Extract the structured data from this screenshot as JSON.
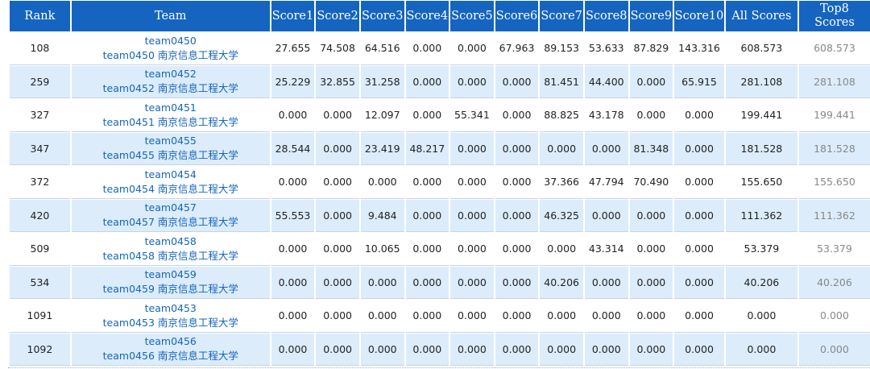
{
  "table": {
    "headers": [
      "Rank",
      "Team",
      "Score1",
      "Score2",
      "Score3",
      "Score4",
      "Score5",
      "Score6",
      "Score7",
      "Score8",
      "Score9",
      "Score10",
      "All Scores",
      "Top8\nScores"
    ],
    "rows": [
      {
        "rank": "108",
        "team_id": "team0450",
        "team_name": "team0450 南京信息工程大学",
        "scores": [
          "27.655",
          "74.508",
          "64.516",
          "0.000",
          "0.000",
          "67.963",
          "89.153",
          "53.633",
          "87.829",
          "143.316"
        ],
        "all": "608.573",
        "top8": "608.573"
      },
      {
        "rank": "259",
        "team_id": "team0452",
        "team_name": "team0452 南京信息工程大学",
        "scores": [
          "25.229",
          "32.855",
          "31.258",
          "0.000",
          "0.000",
          "0.000",
          "81.451",
          "44.400",
          "0.000",
          "65.915"
        ],
        "all": "281.108",
        "top8": "281.108"
      },
      {
        "rank": "327",
        "team_id": "team0451",
        "team_name": "team0451 南京信息工程大学",
        "scores": [
          "0.000",
          "0.000",
          "12.097",
          "0.000",
          "55.341",
          "0.000",
          "88.825",
          "43.178",
          "0.000",
          "0.000"
        ],
        "all": "199.441",
        "top8": "199.441"
      },
      {
        "rank": "347",
        "team_id": "team0455",
        "team_name": "team0455 南京信息工程大学",
        "scores": [
          "28.544",
          "0.000",
          "23.419",
          "48.217",
          "0.000",
          "0.000",
          "0.000",
          "0.000",
          "81.348",
          "0.000"
        ],
        "all": "181.528",
        "top8": "181.528"
      },
      {
        "rank": "372",
        "team_id": "team0454",
        "team_name": "team0454 南京信息工程大学",
        "scores": [
          "0.000",
          "0.000",
          "0.000",
          "0.000",
          "0.000",
          "0.000",
          "37.366",
          "47.794",
          "70.490",
          "0.000"
        ],
        "all": "155.650",
        "top8": "155.650"
      },
      {
        "rank": "420",
        "team_id": "team0457",
        "team_name": "team0457 南京信息工程大学",
        "scores": [
          "55.553",
          "0.000",
          "9.484",
          "0.000",
          "0.000",
          "0.000",
          "46.325",
          "0.000",
          "0.000",
          "0.000"
        ],
        "all": "111.362",
        "top8": "111.362"
      },
      {
        "rank": "509",
        "team_id": "team0458",
        "team_name": "team0458 南京信息工程大学",
        "scores": [
          "0.000",
          "0.000",
          "10.065",
          "0.000",
          "0.000",
          "0.000",
          "0.000",
          "43.314",
          "0.000",
          "0.000"
        ],
        "all": "53.379",
        "top8": "53.379"
      },
      {
        "rank": "534",
        "team_id": "team0459",
        "team_name": "team0459 南京信息工程大学",
        "scores": [
          "0.000",
          "0.000",
          "0.000",
          "0.000",
          "0.000",
          "0.000",
          "40.206",
          "0.000",
          "0.000",
          "0.000"
        ],
        "all": "40.206",
        "top8": "40.206"
      },
      {
        "rank": "1091",
        "team_id": "team0453",
        "team_name": "team0453 南京信息工程大学",
        "scores": [
          "0.000",
          "0.000",
          "0.000",
          "0.000",
          "0.000",
          "0.000",
          "0.000",
          "0.000",
          "0.000",
          "0.000"
        ],
        "all": "0.000",
        "top8": "0.000"
      },
      {
        "rank": "1092",
        "team_id": "team0456",
        "team_name": "team0456 南京信息工程大学",
        "scores": [
          "0.000",
          "0.000",
          "0.000",
          "0.000",
          "0.000",
          "0.000",
          "0.000",
          "0.000",
          "0.000",
          "0.000"
        ],
        "all": "0.000",
        "top8": "0.000"
      }
    ]
  },
  "colors": {
    "header_bg": "#1565c0",
    "row_alt_bg": "#dcecfb",
    "team_text": "#1565c0",
    "top8_text": "#888888"
  }
}
